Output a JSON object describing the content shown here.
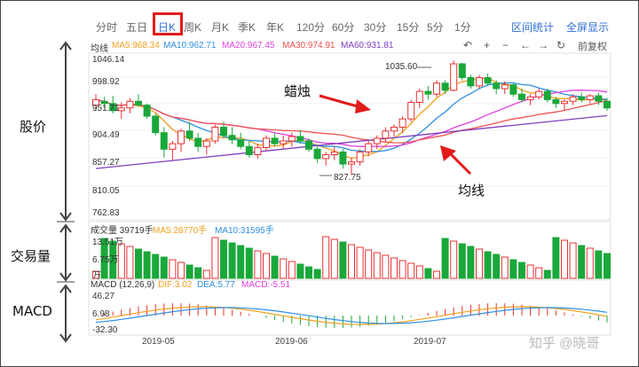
{
  "side_labels": {
    "price": "股价",
    "volume": "交易量",
    "macd": "MACD"
  },
  "tabs": [
    {
      "label": "分时",
      "selected": false
    },
    {
      "label": "五日",
      "selected": false
    },
    {
      "label": "日K",
      "selected": true
    },
    {
      "label": "周K",
      "selected": false
    },
    {
      "label": "月K",
      "selected": false
    },
    {
      "label": "季K",
      "selected": false
    },
    {
      "label": "年K",
      "selected": false
    },
    {
      "label": "120分",
      "selected": false
    },
    {
      "label": "60分",
      "selected": false
    },
    {
      "label": "30分",
      "selected": false
    },
    {
      "label": "15分",
      "selected": false
    },
    {
      "label": "5分",
      "selected": false
    },
    {
      "label": "1分",
      "selected": false
    }
  ],
  "links": {
    "range_stats": "区间统计",
    "fullscreen": "全屏显示"
  },
  "ma_bar": {
    "label": "均线",
    "items": [
      {
        "text": "MA5:968.34",
        "color": "#f0a020"
      },
      {
        "text": "MA10:962.71",
        "color": "#2f8fe0"
      },
      {
        "text": "MA20:967.45",
        "color": "#e040e0"
      },
      {
        "text": "MA30:974.91",
        "color": "#f05050"
      },
      {
        "text": "MA60:931.81",
        "color": "#8040c0"
      }
    ]
  },
  "controls": {
    "back": "↶",
    "zoom_in": "+",
    "zoom_out": "−",
    "left": "←",
    "right": "→",
    "reset": "↻",
    "adjust": "前复权"
  },
  "price_axis": [
    "1046.14",
    "998.92",
    "951.71",
    "904.49",
    "857.27",
    "810.05",
    "762.83"
  ],
  "annotations": {
    "candle": "蜡烛",
    "ma": "均线",
    "high": "1035.60",
    "low": "827.75"
  },
  "volume": {
    "header": "成交量 39719手",
    "ma5": "MA5:28770手",
    "ma10": "MA10:31595手",
    "axis": [
      "13.51万",
      "6.75万",
      "万"
    ]
  },
  "macd": {
    "header": "MACD (12,26,9)",
    "dif": "DIF:3.02",
    "dea": "DEA:5.77",
    "macd": "MACD:-5.51",
    "axis": [
      "46.27",
      "6.98",
      "-32.30"
    ]
  },
  "dates": [
    "2019-05",
    "2019-06",
    "2019-07"
  ],
  "watermark": "知乎 @晓哥",
  "colors": {
    "up": "#e93030",
    "down": "#1aa83a",
    "ma5": "#f0a020",
    "ma10": "#2f8fe0",
    "ma20": "#e040e0",
    "ma30": "#f05050",
    "ma60": "#8040c0",
    "accent": "#2f6fd6"
  },
  "chart_data": {
    "type": "candlestick",
    "ohlc": [
      [
        955,
        975,
        945,
        965
      ],
      [
        962,
        970,
        950,
        958
      ],
      [
        958,
        972,
        940,
        945
      ],
      [
        945,
        960,
        930,
        950
      ],
      [
        950,
        968,
        940,
        962
      ],
      [
        962,
        975,
        952,
        955
      ],
      [
        955,
        958,
        930,
        935
      ],
      [
        935,
        940,
        900,
        905
      ],
      [
        905,
        915,
        860,
        875
      ],
      [
        875,
        890,
        855,
        885
      ],
      [
        885,
        912,
        870,
        908
      ],
      [
        908,
        925,
        890,
        895
      ],
      [
        895,
        905,
        870,
        880
      ],
      [
        880,
        895,
        865,
        890
      ],
      [
        890,
        920,
        885,
        915
      ],
      [
        915,
        925,
        895,
        900
      ],
      [
        900,
        915,
        885,
        892
      ],
      [
        892,
        905,
        875,
        880
      ],
      [
        880,
        890,
        860,
        865
      ],
      [
        865,
        885,
        858,
        878
      ],
      [
        878,
        900,
        872,
        895
      ],
      [
        895,
        905,
        880,
        885
      ],
      [
        885,
        900,
        875,
        890
      ],
      [
        890,
        905,
        880,
        898
      ],
      [
        898,
        910,
        885,
        890
      ],
      [
        890,
        895,
        870,
        875
      ],
      [
        875,
        882,
        850,
        858
      ],
      [
        858,
        870,
        845,
        865
      ],
      [
        865,
        880,
        855,
        870
      ],
      [
        870,
        875,
        840,
        848
      ],
      [
        848,
        860,
        828,
        852
      ],
      [
        852,
        875,
        845,
        870
      ],
      [
        870,
        890,
        862,
        885
      ],
      [
        885,
        900,
        875,
        895
      ],
      [
        895,
        915,
        888,
        908
      ],
      [
        908,
        920,
        898,
        915
      ],
      [
        915,
        935,
        905,
        930
      ],
      [
        930,
        965,
        925,
        960
      ],
      [
        960,
        985,
        950,
        980
      ],
      [
        980,
        990,
        965,
        975
      ],
      [
        975,
        1000,
        970,
        995
      ],
      [
        995,
        1000,
        975,
        982
      ],
      [
        982,
        1036,
        980,
        1030
      ],
      [
        1030,
        1032,
        1000,
        1005
      ],
      [
        1005,
        1010,
        985,
        990
      ],
      [
        990,
        1010,
        985,
        1005
      ],
      [
        1005,
        1012,
        990,
        995
      ],
      [
        995,
        1000,
        975,
        985
      ],
      [
        985,
        998,
        975,
        992
      ],
      [
        992,
        995,
        970,
        975
      ],
      [
        975,
        985,
        960,
        965
      ],
      [
        965,
        975,
        955,
        970
      ],
      [
        970,
        985,
        965,
        980
      ],
      [
        980,
        985,
        960,
        965
      ],
      [
        965,
        970,
        950,
        958
      ],
      [
        958,
        965,
        945,
        962
      ],
      [
        962,
        975,
        955,
        970
      ],
      [
        970,
        978,
        960,
        965
      ],
      [
        965,
        975,
        958,
        972
      ],
      [
        972,
        978,
        955,
        962
      ],
      [
        962,
        968,
        945,
        950
      ]
    ],
    "xlabels": [
      "2019-05",
      "2019-06",
      "2019-07"
    ],
    "ylim": [
      762.83,
      1046.14
    ]
  }
}
